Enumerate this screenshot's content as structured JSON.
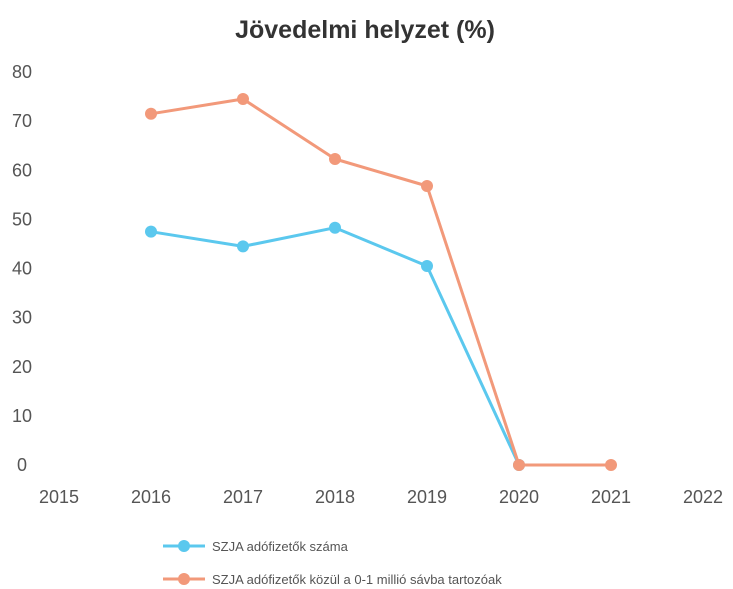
{
  "chart_data": {
    "type": "line",
    "title": "Jövedelmi helyzet (%)",
    "xlabel": "",
    "ylabel": "",
    "x_ticks": [
      "2015",
      "2016",
      "2017",
      "2018",
      "2019",
      "2020",
      "2021",
      "2022"
    ],
    "y_ticks": [
      "0",
      "10",
      "20",
      "30",
      "40",
      "50",
      "60",
      "70",
      "80"
    ],
    "xlim": [
      2015,
      2022
    ],
    "ylim": [
      0,
      80
    ],
    "grid": false,
    "legend_position": "bottom",
    "series": [
      {
        "name": "SZJA adófizetők száma",
        "color": "#5bc8ee",
        "x": [
          2016,
          2017,
          2018,
          2019,
          2020
        ],
        "values": [
          47.5,
          44.5,
          48.3,
          40.5,
          0
        ]
      },
      {
        "name": "SZJA adófizetők közül a 0-1 millió sávba tartozóak",
        "color": "#f2997a",
        "x": [
          2016,
          2017,
          2018,
          2019,
          2020,
          2021
        ],
        "values": [
          71.5,
          74.5,
          62.3,
          56.8,
          0,
          0
        ]
      }
    ]
  }
}
